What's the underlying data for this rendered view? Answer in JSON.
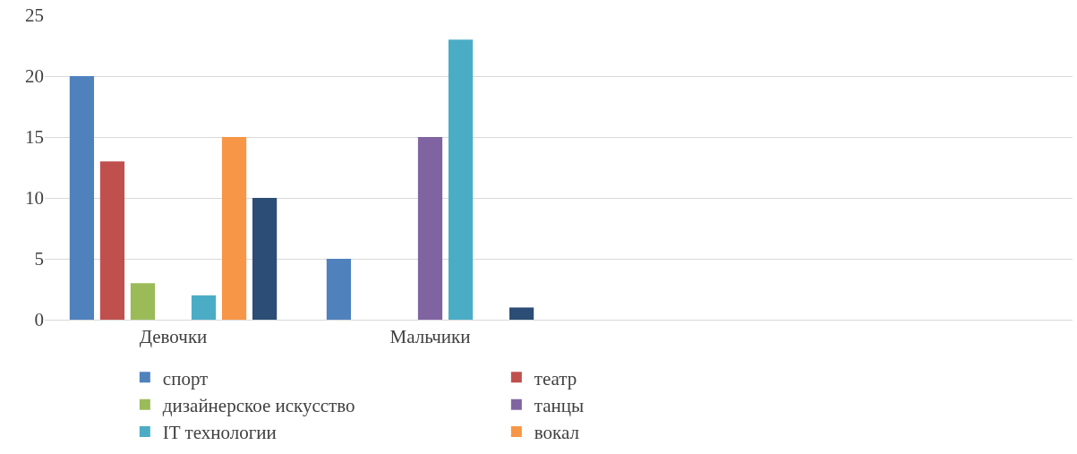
{
  "chart_data": {
    "type": "bar",
    "categories": [
      "Девочки",
      "Мальчики",
      null,
      null
    ],
    "series": [
      {
        "name": "спорт",
        "color": "#4f81bd",
        "values": [
          20,
          5,
          null,
          null
        ]
      },
      {
        "name": "театр",
        "color": "#c0504d",
        "values": [
          13,
          0,
          null,
          null
        ]
      },
      {
        "name": "дизайнерское искусство",
        "color": "#9bbb59",
        "values": [
          3,
          0,
          null,
          null
        ]
      },
      {
        "name": "танцы",
        "color": "#8064a2",
        "values": [
          0,
          15,
          null,
          null
        ]
      },
      {
        "name": "IT технологии",
        "color": "#4bacc6",
        "values": [
          2,
          23,
          null,
          null
        ]
      },
      {
        "name": "вокал",
        "color": "#f79646",
        "values": [
          15,
          0,
          null,
          null
        ]
      },
      {
        "color": "#2c4d75",
        "values": [
          10,
          1,
          null,
          null
        ]
      }
    ],
    "ylim": [
      0,
      25
    ],
    "yticks": [
      0,
      5,
      10,
      15,
      20,
      25
    ],
    "grid": "y",
    "legend": "bottom"
  }
}
